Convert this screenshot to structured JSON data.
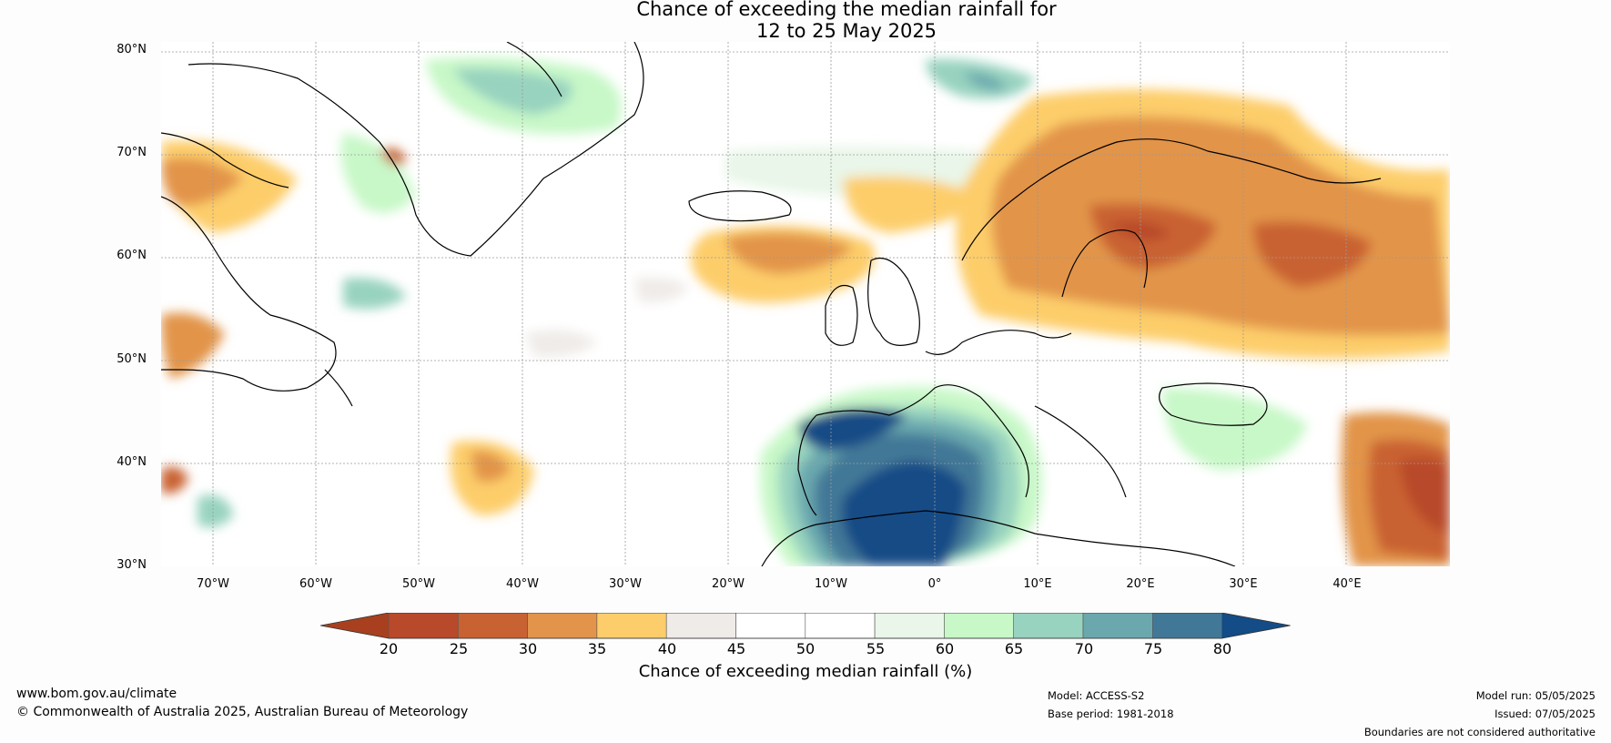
{
  "title": {
    "line1": "Chance of exceeding the median rainfall for",
    "line2": "12 to 25 May 2025"
  },
  "map": {
    "lat_labels": [
      "80°N",
      "70°N",
      "60°N",
      "50°N",
      "40°N",
      "30°N"
    ],
    "lon_labels": [
      "70°W",
      "60°W",
      "50°W",
      "40°W",
      "30°W",
      "20°W",
      "10°W",
      "0°",
      "10°E",
      "20°E",
      "30°E",
      "40°E"
    ],
    "gridlines": true,
    "extent": {
      "lon": [
        -75,
        50
      ],
      "lat": [
        30,
        81
      ]
    }
  },
  "colorbar": {
    "ticks": [
      "20",
      "25",
      "30",
      "35",
      "40",
      "45",
      "50",
      "55",
      "60",
      "65",
      "70",
      "75",
      "80"
    ],
    "colors": [
      "#a8401f",
      "#b8492a",
      "#c96232",
      "#e2944a",
      "#fdcd6b",
      "#efebe8",
      "#ffffff",
      "#ffffff",
      "#e9f6e9",
      "#c8f8c8",
      "#98d3bf",
      "#6aa8ae",
      "#427897",
      "#134c86"
    ],
    "label": "Chance of exceeding median rainfall (%)",
    "extend": "both"
  },
  "footer": {
    "url": "www.bom.gov.au/climate",
    "copyright": "© Commonwealth of Australia 2025, Australian Bureau of Meteorology",
    "model": "Model: ACCESS-S2",
    "base_period": "Base period: 1981-2018",
    "model_run": "Model run: 05/05/2025",
    "issued": "Issued: 07/05/2025",
    "disclaimer": "Boundaries are not considered authoritative"
  }
}
